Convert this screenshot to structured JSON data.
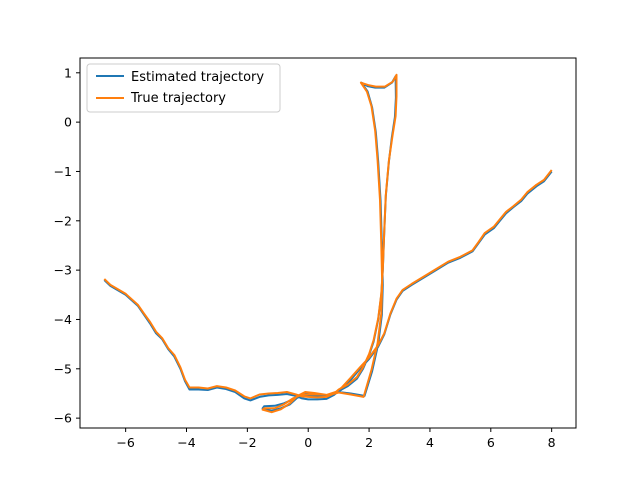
{
  "chart_data": {
    "type": "line",
    "title": "",
    "xlabel": "",
    "ylabel": "",
    "xlim": [
      -7.5,
      8.8
    ],
    "ylim": [
      -6.2,
      1.3
    ],
    "xticks": [
      -6,
      -4,
      -2,
      0,
      2,
      4,
      6,
      8
    ],
    "xtick_labels": [
      "−6",
      "−4",
      "−2",
      "0",
      "2",
      "4",
      "6",
      "8"
    ],
    "yticks": [
      -6,
      -5,
      -4,
      -3,
      -2,
      -1,
      0,
      1
    ],
    "ytick_labels": [
      "−6",
      "−5",
      "−4",
      "−3",
      "−2",
      "−1",
      "0",
      "1"
    ],
    "grid": false,
    "legend_position": "top-left",
    "series": [
      {
        "name": "Estimated trajectory",
        "color": "#1f77b4",
        "points": [
          [
            -6.7,
            -3.2
          ],
          [
            -6.5,
            -3.32
          ],
          [
            -6.0,
            -3.5
          ],
          [
            -5.6,
            -3.72
          ],
          [
            -5.4,
            -3.9
          ],
          [
            -5.2,
            -4.08
          ],
          [
            -5.0,
            -4.28
          ],
          [
            -4.8,
            -4.4
          ],
          [
            -4.6,
            -4.6
          ],
          [
            -4.4,
            -4.75
          ],
          [
            -4.2,
            -5.0
          ],
          [
            -4.05,
            -5.25
          ],
          [
            -3.9,
            -5.42
          ],
          [
            -3.6,
            -5.42
          ],
          [
            -3.3,
            -5.43
          ],
          [
            -3.0,
            -5.38
          ],
          [
            -2.7,
            -5.41
          ],
          [
            -2.4,
            -5.47
          ],
          [
            -2.1,
            -5.6
          ],
          [
            -1.9,
            -5.64
          ],
          [
            -1.6,
            -5.57
          ],
          [
            -1.3,
            -5.54
          ],
          [
            -1.0,
            -5.53
          ],
          [
            -0.7,
            -5.51
          ],
          [
            -0.4,
            -5.55
          ],
          [
            -0.2,
            -5.6
          ],
          [
            0.0,
            -5.62
          ],
          [
            0.3,
            -5.62
          ],
          [
            0.6,
            -5.61
          ],
          [
            0.85,
            -5.53
          ],
          [
            1.0,
            -5.45
          ],
          [
            1.3,
            -5.35
          ],
          [
            1.6,
            -5.2
          ],
          [
            1.8,
            -5.0
          ],
          [
            2.0,
            -4.72
          ],
          [
            2.15,
            -4.45
          ],
          [
            2.3,
            -4.0
          ],
          [
            2.4,
            -3.5
          ],
          [
            2.45,
            -3.0
          ],
          [
            2.5,
            -2.2
          ],
          [
            2.55,
            -1.5
          ],
          [
            2.65,
            -0.8
          ],
          [
            2.75,
            -0.3
          ],
          [
            2.85,
            0.1
          ],
          [
            2.88,
            0.5
          ],
          [
            2.87,
            0.93
          ],
          [
            2.75,
            0.8
          ],
          [
            2.5,
            0.7
          ],
          [
            2.2,
            0.7
          ],
          [
            1.95,
            0.73
          ],
          [
            1.75,
            0.8
          ],
          [
            1.95,
            0.62
          ],
          [
            2.1,
            0.3
          ],
          [
            2.22,
            -0.2
          ],
          [
            2.3,
            -0.8
          ],
          [
            2.38,
            -1.6
          ],
          [
            2.42,
            -2.5
          ],
          [
            2.45,
            -3.3
          ],
          [
            2.42,
            -3.9
          ],
          [
            2.3,
            -4.5
          ],
          [
            2.1,
            -5.05
          ],
          [
            1.85,
            -5.55
          ],
          [
            1.4,
            -5.5
          ],
          [
            1.0,
            -5.47
          ],
          [
            0.7,
            -5.55
          ],
          [
            0.4,
            -5.55
          ],
          [
            0.1,
            -5.55
          ],
          [
            -0.2,
            -5.55
          ],
          [
            -0.5,
            -5.62
          ],
          [
            -0.8,
            -5.7
          ],
          [
            -1.1,
            -5.75
          ],
          [
            -1.45,
            -5.76
          ],
          [
            -1.5,
            -5.8
          ],
          [
            -1.2,
            -5.85
          ],
          [
            -0.9,
            -5.8
          ],
          [
            -0.6,
            -5.72
          ],
          [
            -0.35,
            -5.58
          ],
          [
            -0.1,
            -5.5
          ],
          [
            0.2,
            -5.52
          ],
          [
            0.6,
            -5.55
          ],
          [
            0.9,
            -5.5
          ],
          [
            1.1,
            -5.42
          ],
          [
            1.4,
            -5.22
          ],
          [
            1.7,
            -5.0
          ],
          [
            2.0,
            -4.8
          ],
          [
            2.3,
            -4.55
          ],
          [
            2.5,
            -4.3
          ],
          [
            2.7,
            -3.9
          ],
          [
            2.9,
            -3.6
          ],
          [
            3.1,
            -3.42
          ],
          [
            3.4,
            -3.3
          ],
          [
            3.8,
            -3.15
          ],
          [
            4.2,
            -3.0
          ],
          [
            4.6,
            -2.85
          ],
          [
            5.0,
            -2.75
          ],
          [
            5.4,
            -2.62
          ],
          [
            5.6,
            -2.45
          ],
          [
            5.8,
            -2.28
          ],
          [
            6.1,
            -2.15
          ],
          [
            6.3,
            -2.0
          ],
          [
            6.5,
            -1.85
          ],
          [
            6.75,
            -1.72
          ],
          [
            7.0,
            -1.6
          ],
          [
            7.2,
            -1.45
          ],
          [
            7.5,
            -1.3
          ],
          [
            7.75,
            -1.2
          ],
          [
            8.0,
            -1.0
          ]
        ]
      },
      {
        "name": "True trajectory",
        "color": "#ff7f0e",
        "points": [
          [
            -6.7,
            -3.18
          ],
          [
            -6.5,
            -3.3
          ],
          [
            -6.0,
            -3.48
          ],
          [
            -5.6,
            -3.7
          ],
          [
            -5.4,
            -3.88
          ],
          [
            -5.2,
            -4.05
          ],
          [
            -5.0,
            -4.25
          ],
          [
            -4.8,
            -4.38
          ],
          [
            -4.6,
            -4.58
          ],
          [
            -4.4,
            -4.72
          ],
          [
            -4.2,
            -4.97
          ],
          [
            -4.05,
            -5.22
          ],
          [
            -3.9,
            -5.38
          ],
          [
            -3.6,
            -5.38
          ],
          [
            -3.3,
            -5.4
          ],
          [
            -3.0,
            -5.35
          ],
          [
            -2.7,
            -5.38
          ],
          [
            -2.4,
            -5.44
          ],
          [
            -2.1,
            -5.56
          ],
          [
            -1.9,
            -5.6
          ],
          [
            -1.6,
            -5.52
          ],
          [
            -1.3,
            -5.5
          ],
          [
            -1.0,
            -5.49
          ],
          [
            -0.7,
            -5.47
          ],
          [
            -0.4,
            -5.52
          ],
          [
            -0.2,
            -5.56
          ],
          [
            0.0,
            -5.57
          ],
          [
            0.3,
            -5.58
          ],
          [
            0.6,
            -5.57
          ],
          [
            0.85,
            -5.5
          ],
          [
            1.0,
            -5.42
          ],
          [
            1.3,
            -5.32
          ],
          [
            1.6,
            -5.17
          ],
          [
            1.8,
            -4.97
          ],
          [
            2.0,
            -4.7
          ],
          [
            2.15,
            -4.42
          ],
          [
            2.3,
            -3.98
          ],
          [
            2.4,
            -3.48
          ],
          [
            2.45,
            -2.98
          ],
          [
            2.5,
            -2.18
          ],
          [
            2.55,
            -1.48
          ],
          [
            2.65,
            -0.78
          ],
          [
            2.77,
            -0.28
          ],
          [
            2.87,
            0.12
          ],
          [
            2.9,
            0.52
          ],
          [
            2.9,
            0.96
          ],
          [
            2.78,
            0.82
          ],
          [
            2.52,
            0.72
          ],
          [
            2.22,
            0.72
          ],
          [
            1.97,
            0.75
          ],
          [
            1.73,
            0.8
          ],
          [
            1.93,
            0.62
          ],
          [
            2.08,
            0.32
          ],
          [
            2.2,
            -0.18
          ],
          [
            2.28,
            -0.78
          ],
          [
            2.36,
            -1.58
          ],
          [
            2.4,
            -2.48
          ],
          [
            2.43,
            -3.28
          ],
          [
            2.4,
            -3.88
          ],
          [
            2.28,
            -4.48
          ],
          [
            2.08,
            -5.02
          ],
          [
            1.82,
            -5.57
          ],
          [
            1.4,
            -5.52
          ],
          [
            1.0,
            -5.48
          ],
          [
            0.7,
            -5.53
          ],
          [
            0.4,
            -5.52
          ],
          [
            0.1,
            -5.52
          ],
          [
            -0.2,
            -5.52
          ],
          [
            -0.5,
            -5.6
          ],
          [
            -0.8,
            -5.72
          ],
          [
            -1.1,
            -5.8
          ],
          [
            -1.45,
            -5.8
          ],
          [
            -1.5,
            -5.83
          ],
          [
            -1.2,
            -5.88
          ],
          [
            -0.9,
            -5.82
          ],
          [
            -0.6,
            -5.7
          ],
          [
            -0.35,
            -5.55
          ],
          [
            -0.1,
            -5.47
          ],
          [
            0.2,
            -5.49
          ],
          [
            0.6,
            -5.53
          ],
          [
            0.9,
            -5.47
          ],
          [
            1.1,
            -5.38
          ],
          [
            1.4,
            -5.18
          ],
          [
            1.7,
            -4.97
          ],
          [
            2.0,
            -4.77
          ],
          [
            2.3,
            -4.52
          ],
          [
            2.5,
            -4.28
          ],
          [
            2.7,
            -3.88
          ],
          [
            2.9,
            -3.58
          ],
          [
            3.1,
            -3.4
          ],
          [
            3.4,
            -3.28
          ],
          [
            3.8,
            -3.13
          ],
          [
            4.2,
            -2.98
          ],
          [
            4.6,
            -2.83
          ],
          [
            5.0,
            -2.73
          ],
          [
            5.4,
            -2.6
          ],
          [
            5.6,
            -2.43
          ],
          [
            5.8,
            -2.25
          ],
          [
            6.1,
            -2.12
          ],
          [
            6.3,
            -1.97
          ],
          [
            6.5,
            -1.82
          ],
          [
            6.75,
            -1.7
          ],
          [
            7.0,
            -1.57
          ],
          [
            7.2,
            -1.42
          ],
          [
            7.5,
            -1.27
          ],
          [
            7.75,
            -1.17
          ],
          [
            8.0,
            -0.97
          ]
        ]
      }
    ]
  }
}
